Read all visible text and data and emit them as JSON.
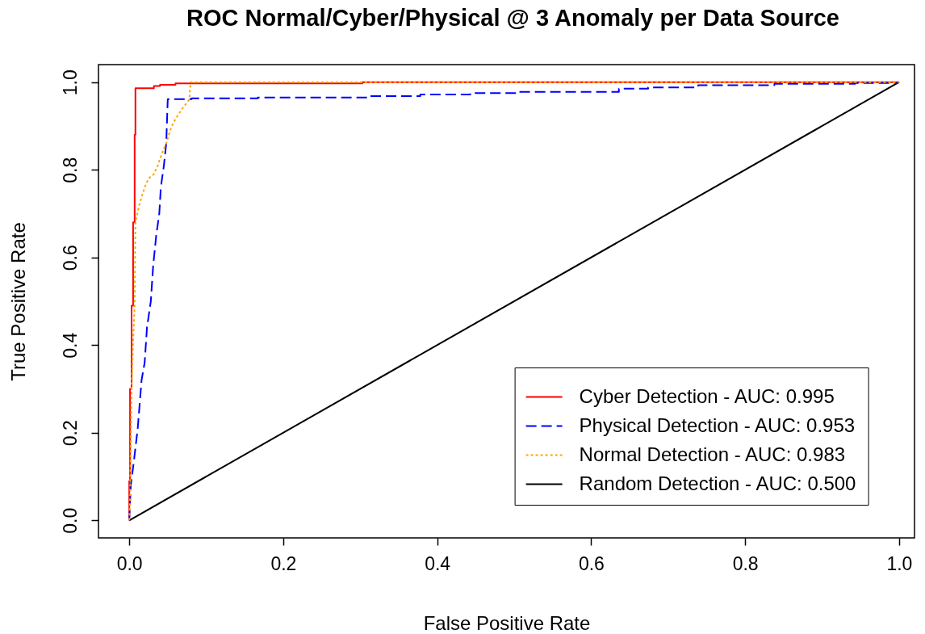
{
  "chart_data": {
    "type": "line",
    "title": "ROC Normal/Cyber/Physical @ 3 Anomaly per Data Source",
    "xlabel": "False Positive Rate",
    "ylabel": "True Positive Rate",
    "xlim": [
      -0.04,
      1.02
    ],
    "ylim": [
      -0.04,
      1.04
    ],
    "xticks": [
      {
        "value": 0,
        "label": "0.0"
      },
      0.2,
      0.4,
      0.6,
      0.8,
      {
        "value": 1,
        "label": "1.0"
      }
    ],
    "yticks": [
      {
        "value": 0,
        "label": "0.0"
      },
      0.2,
      0.4,
      0.6,
      0.8,
      {
        "value": 1,
        "label": "1.0"
      }
    ],
    "legend": "bottom right",
    "series": [
      {
        "name": "Cyber Detection - AUC: 0.995",
        "color": "#ff0000",
        "line_style": "solid",
        "x": [
          0,
          0,
          0.001,
          0.001,
          0.003,
          0.003,
          0.005,
          0.005,
          0.007,
          0.007,
          0.008,
          0.008,
          0.032,
          0.032,
          0.04,
          0.04,
          0.06,
          0.06,
          0.303,
          0.303,
          1
        ],
        "values": [
          0,
          0.09,
          0.09,
          0.3,
          0.3,
          0.49,
          0.49,
          0.68,
          0.68,
          0.88,
          0.88,
          0.986,
          0.986,
          0.991,
          0.991,
          0.994,
          0.994,
          0.997,
          0.997,
          1,
          1
        ]
      },
      {
        "name": "Physical Detection - AUC: 0.953",
        "color": "#0000ff",
        "line_style": "dashed",
        "x": [
          0,
          0.002,
          0.006,
          0.011,
          0.016,
          0.02,
          0.023,
          0.028,
          0.031,
          0.035,
          0.039,
          0.041,
          0.045,
          0.048,
          0.05,
          0.081,
          0.081,
          0.167,
          0.167,
          0.31,
          0.31,
          0.378,
          0.378,
          0.443,
          0.443,
          0.506,
          0.506,
          0.636,
          0.636,
          0.674,
          0.674,
          0.739,
          0.739,
          0.838,
          0.838,
          0.943,
          0.943,
          0.998,
          1
        ],
        "values": [
          0,
          0.08,
          0.135,
          0.21,
          0.32,
          0.36,
          0.44,
          0.5,
          0.58,
          0.65,
          0.7,
          0.76,
          0.81,
          0.86,
          0.961,
          0.961,
          0.963,
          0.963,
          0.965,
          0.965,
          0.968,
          0.968,
          0.972,
          0.972,
          0.975,
          0.975,
          0.978,
          0.978,
          0.985,
          0.985,
          0.988,
          0.988,
          0.993,
          0.993,
          0.996,
          0.996,
          0.998,
          0.998,
          1
        ]
      },
      {
        "name": "Normal Detection - AUC: 0.983",
        "color": "#ffa500",
        "line_style": "dotted",
        "x": [
          0,
          0.001,
          0.002,
          0.003,
          0.005,
          0.007,
          0.008,
          0.013,
          0.02,
          0.025,
          0.032,
          0.037,
          0.043,
          0.048,
          0.053,
          0.058,
          0.069,
          0.078,
          0.079,
          0.08,
          1
        ],
        "values": [
          0,
          0.04,
          0.18,
          0.3,
          0.41,
          0.49,
          0.68,
          0.72,
          0.76,
          0.78,
          0.79,
          0.81,
          0.84,
          0.86,
          0.89,
          0.91,
          0.94,
          0.96,
          0.985,
          1,
          1
        ]
      },
      {
        "name": "Random Detection - AUC: 0.500",
        "color": "#000000",
        "line_style": "solid",
        "x": [
          0,
          1
        ],
        "values": [
          0,
          1
        ]
      }
    ]
  }
}
